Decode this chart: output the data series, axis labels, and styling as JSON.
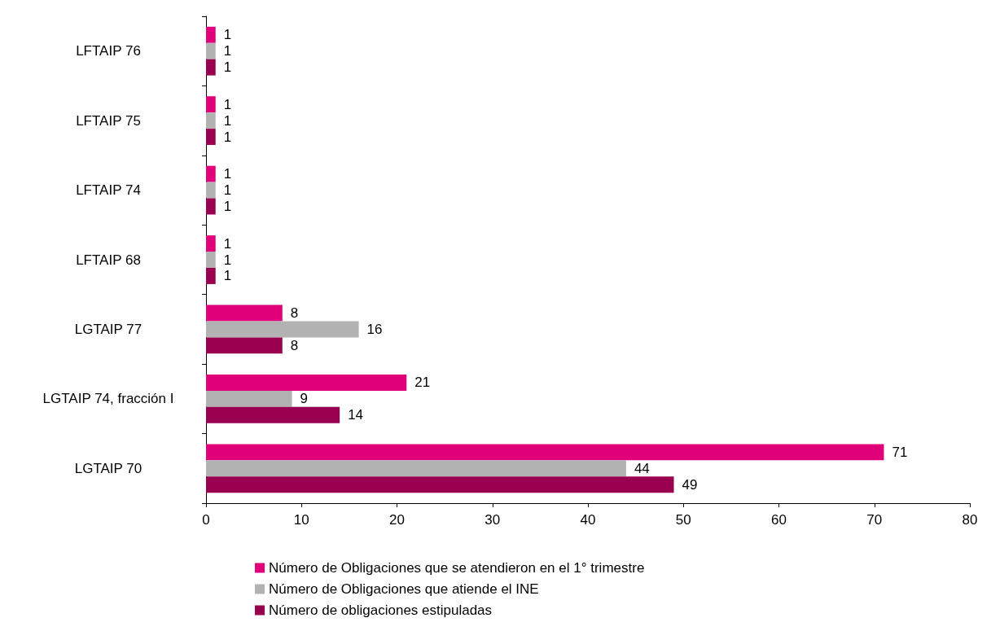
{
  "chart_data": {
    "type": "bar",
    "orientation": "horizontal",
    "categories": [
      "LFTAIP 76",
      "LFTAIP 75",
      "LFTAIP 74",
      "LFTAIP 68",
      "LGTAIP 77",
      "LGTAIP 74, fracción I",
      "LGTAIP 70"
    ],
    "series": [
      {
        "name": "Número de Obligaciones que se atendieron en el 1° trimestre",
        "color": "#e0007a",
        "values": [
          1,
          1,
          1,
          1,
          8,
          21,
          71
        ]
      },
      {
        "name": "Número de Obligaciones que atiende el INE",
        "color": "#b2b2b2",
        "values": [
          1,
          1,
          1,
          1,
          16,
          9,
          44
        ]
      },
      {
        "name": "Número de obligaciones estipuladas",
        "color": "#990050",
        "values": [
          1,
          1,
          1,
          1,
          8,
          14,
          49
        ]
      }
    ],
    "xlim": [
      0,
      80
    ],
    "xticks": [
      0,
      10,
      20,
      30,
      40,
      50,
      60,
      70,
      80
    ],
    "data_labels": true,
    "grid": false,
    "legend": "bottom"
  }
}
